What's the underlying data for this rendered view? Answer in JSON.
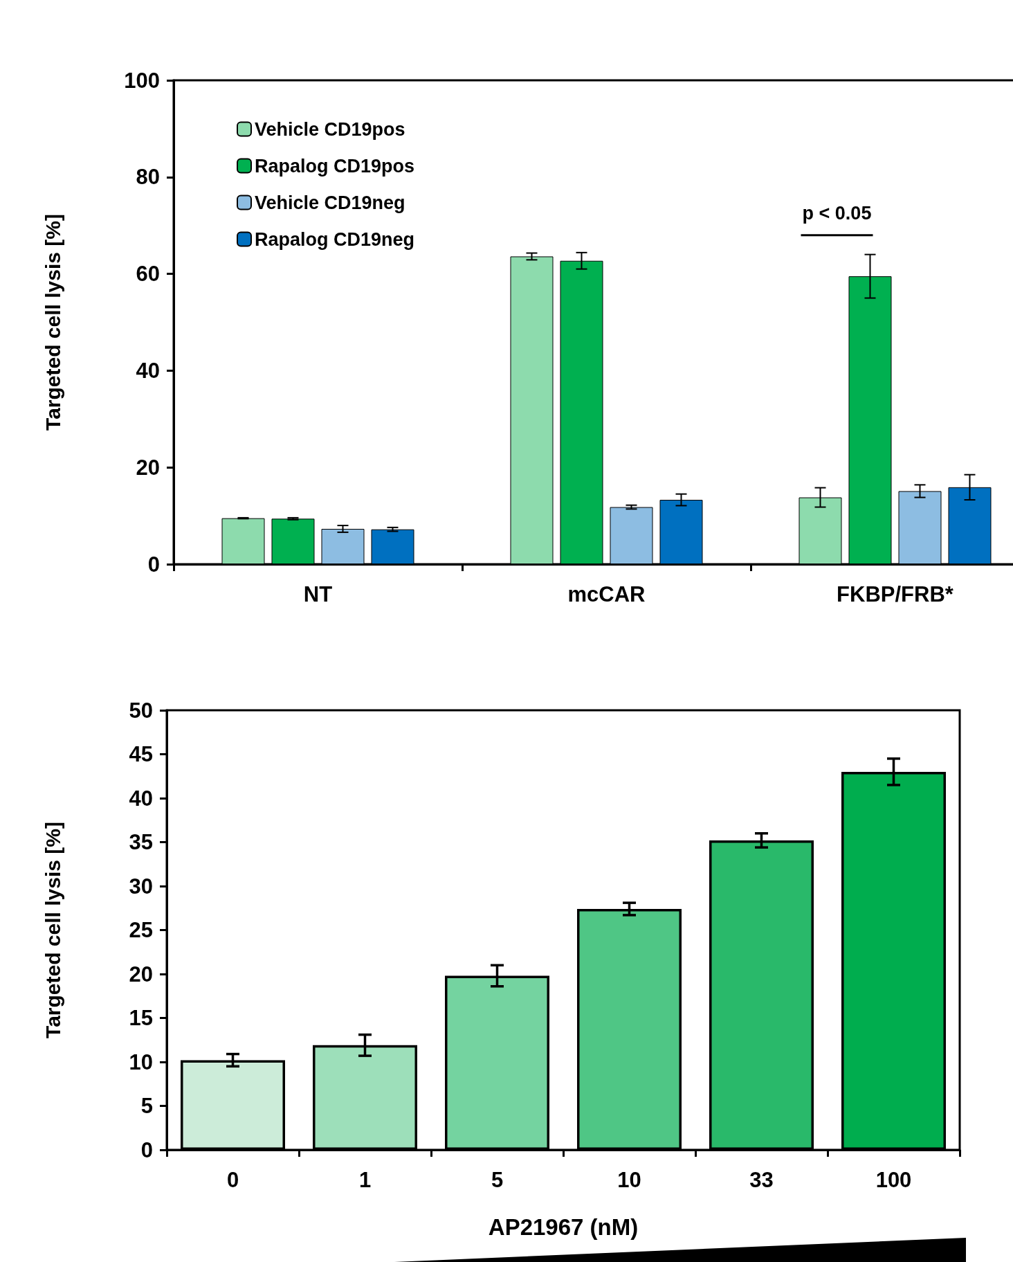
{
  "chart_data": [
    {
      "type": "bar",
      "ylabel": "Targeted cell lysis [%]",
      "categories": [
        "NT",
        "mcCAR",
        "FKBP/FRB*"
      ],
      "ylim": [
        0,
        100
      ],
      "yticks": [
        0,
        20,
        40,
        60,
        80,
        100
      ],
      "grid": false,
      "legend": "top left",
      "annotations": [
        "p < 0.05"
      ],
      "series": [
        {
          "name": "Vehicle CD19pos",
          "color": "#8ddbad",
          "values": [
            9.5,
            63.6,
            13.8
          ],
          "errors": [
            0.1,
            0.7,
            2.0
          ]
        },
        {
          "name": "Rapalog CD19pos",
          "color": "#00b050",
          "values": [
            9.4,
            62.7,
            59.5
          ],
          "errors": [
            0.2,
            1.7,
            4.5
          ]
        },
        {
          "name": "Vehicle CD19neg",
          "color": "#8dbde2",
          "values": [
            7.3,
            11.8,
            15.1
          ],
          "errors": [
            0.7,
            0.4,
            1.3
          ]
        },
        {
          "name": "Rapalog CD19neg",
          "color": "#0070c0",
          "values": [
            7.2,
            13.3,
            15.9
          ],
          "errors": [
            0.4,
            1.2,
            2.6
          ]
        }
      ]
    },
    {
      "type": "bar",
      "ylabel": "Targeted cell lysis [%]",
      "xlabel": "AP21967 (nM)",
      "categories": [
        "0",
        "1",
        "5",
        "10",
        "33",
        "100"
      ],
      "ylim": [
        0,
        50
      ],
      "yticks": [
        0,
        5,
        10,
        15,
        20,
        25,
        30,
        35,
        40,
        45,
        50
      ],
      "grid": false,
      "legend": false,
      "values": [
        10.2,
        11.9,
        19.8,
        27.4,
        35.2,
        43.0
      ],
      "errors": [
        0.7,
        1.2,
        1.2,
        0.7,
        0.8,
        1.5
      ],
      "colors": [
        "#ccecd9",
        "#9ddfba",
        "#74d3a0",
        "#4fc685",
        "#29b96a",
        "#00ad4e"
      ]
    }
  ]
}
